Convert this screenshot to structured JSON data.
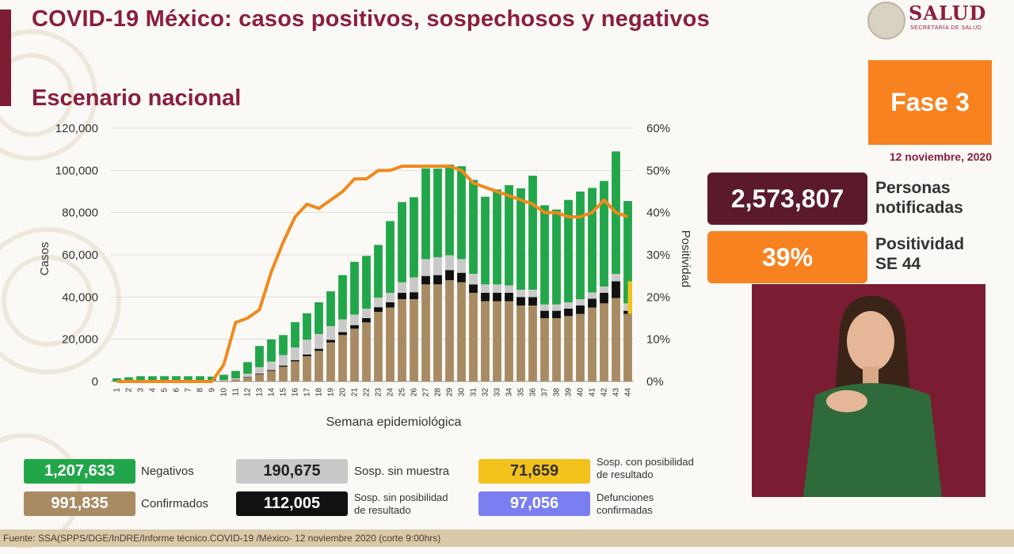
{
  "header": {
    "title": "COVID-19 México: casos positivos, sospechosos y negativos",
    "subtitle": "Escenario nacional",
    "logo_text": "SALUD",
    "logo_subtext": "SECRETARÍA DE SALUD"
  },
  "panel": {
    "fase": "Fase 3",
    "date": "12 noviembre, 2020",
    "notificadas_value": "2,573,807",
    "notificadas_label_1": "Personas",
    "notificadas_label_2": "notificadas",
    "positividad_value": "39%",
    "positividad_label_1": "Positividad",
    "positividad_label_2": "SE 44"
  },
  "legend": {
    "negativos_value": "1,207,633",
    "negativos_label": "Negativos",
    "confirmados_value": "991,835",
    "confirmados_label": "Confirmados",
    "sosp_sin_muestra_value": "190,675",
    "sosp_sin_muestra_label": "Sosp. sin muestra",
    "sosp_sin_pos_value": "112,005",
    "sosp_sin_pos_label_1": "Sosp. sin posibilidad",
    "sosp_sin_pos_label_2": "de resultado",
    "sosp_con_pos_value": "71,659",
    "sosp_con_pos_label_1": "Sosp. con posibilidad",
    "sosp_con_pos_label_2": "de resultado",
    "defunciones_value": "97,056",
    "defunciones_label_1": "Defunciones",
    "defunciones_label_2": "confirmadas"
  },
  "footer": "Fuente: SSA(SPPS/DGE/InDRE/Informe técnico.COVID-19 /México- 12 noviembre 2020 (corte 9:00hrs)",
  "colors": {
    "confirmados": "#a88b63",
    "sosp_sin_pos": "#111111",
    "sosp_sin_muestra": "#c9c9c9",
    "negativos": "#22a64a",
    "sosp_con_pos": "#f3c21c",
    "defunciones": "#7a7ef0",
    "positividad": "#f08a1c"
  },
  "chart_data": {
    "type": "bar",
    "xlabel": "Semana epidemiológica",
    "ylabel": "Casos",
    "y2label": "Positividad",
    "ylim": [
      0,
      120000
    ],
    "y2lim": [
      0,
      60
    ],
    "yticks": [
      "0",
      "20,000",
      "40,000",
      "60,000",
      "80,000",
      "100,000",
      "120,000"
    ],
    "y2ticks": [
      "0%",
      "10%",
      "20%",
      "30%",
      "40%",
      "50%",
      "60%"
    ],
    "categories": [
      "1",
      "2",
      "3",
      "4",
      "5",
      "6",
      "7",
      "8",
      "9",
      "10",
      "11",
      "12",
      "13",
      "14",
      "15",
      "16",
      "17",
      "18",
      "19",
      "20",
      "21",
      "22",
      "23",
      "24",
      "25",
      "26",
      "27",
      "28",
      "29",
      "30",
      "31",
      "32",
      "33",
      "34",
      "35",
      "36",
      "37",
      "38",
      "39",
      "40",
      "41",
      "42",
      "43",
      "44"
    ],
    "series": [
      {
        "name": "Confirmados",
        "values": [
          0,
          0,
          0,
          0,
          0,
          0,
          0,
          0,
          100,
          400,
          1000,
          2000,
          3500,
          5000,
          7000,
          9500,
          12000,
          14500,
          18500,
          22000,
          25000,
          28000,
          33000,
          35000,
          39000,
          39000,
          46000,
          46000,
          48000,
          47000,
          42000,
          38000,
          38000,
          38000,
          36000,
          36000,
          30000,
          30000,
          31000,
          32000,
          35000,
          37000,
          39500,
          32000
        ]
      },
      {
        "name": "Sosp. sin posibilidad de resultado",
        "values": [
          0,
          0,
          0,
          0,
          0,
          0,
          0,
          0,
          0,
          0,
          0,
          200,
          300,
          400,
          500,
          600,
          800,
          1000,
          1200,
          1400,
          1700,
          2000,
          2200,
          2500,
          3000,
          3300,
          4000,
          4400,
          4800,
          4500,
          4000,
          4000,
          4000,
          4000,
          4000,
          4000,
          3500,
          3500,
          3500,
          4000,
          4200,
          5000,
          8000,
          1500
        ]
      },
      {
        "name": "Sosp. sin muestra",
        "values": [
          0,
          0,
          0,
          0,
          0,
          0,
          0,
          0,
          200,
          300,
          500,
          1500,
          3000,
          4000,
          5000,
          6000,
          7000,
          7000,
          6500,
          6000,
          5000,
          4500,
          4500,
          4500,
          5000,
          7000,
          8000,
          8500,
          7000,
          6500,
          5000,
          4000,
          4000,
          3500,
          3500,
          3500,
          3000,
          3000,
          3000,
          3000,
          3000,
          3000,
          3500,
          3500
        ]
      },
      {
        "name": "Negativos",
        "values": [
          1500,
          2000,
          2500,
          2500,
          2500,
          2500,
          2500,
          2500,
          2000,
          2500,
          3500,
          5500,
          10000,
          10500,
          9500,
          12000,
          12500,
          15000,
          16500,
          21000,
          25000,
          25000,
          25000,
          34000,
          38000,
          38000,
          43000,
          42000,
          43000,
          44000,
          44500,
          41500,
          45000,
          47500,
          48000,
          54000,
          47000,
          45000,
          48500,
          51000,
          49500,
          50000,
          58000,
          48500
        ]
      },
      {
        "name": "Sosp. con posibilidad de resultado",
        "values": [
          0,
          0,
          0,
          0,
          0,
          0,
          0,
          0,
          0,
          0,
          0,
          0,
          0,
          0,
          0,
          0,
          0,
          0,
          0,
          0,
          0,
          0,
          0,
          0,
          0,
          0,
          0,
          0,
          0,
          0,
          0,
          0,
          0,
          0,
          0,
          0,
          0,
          0,
          0,
          0,
          0,
          0,
          0,
          15500
        ]
      },
      {
        "name": "Positividad",
        "axis": "right",
        "values": [
          0,
          0,
          0,
          0,
          0,
          0,
          0,
          0,
          0,
          4,
          14,
          15,
          17,
          26,
          33,
          39,
          42,
          41,
          43,
          45,
          48,
          48,
          50,
          50,
          51,
          51,
          51,
          51,
          51,
          50,
          47,
          46,
          45,
          44,
          43,
          42,
          40,
          40,
          39,
          39,
          40,
          43,
          40,
          39
        ]
      }
    ]
  }
}
